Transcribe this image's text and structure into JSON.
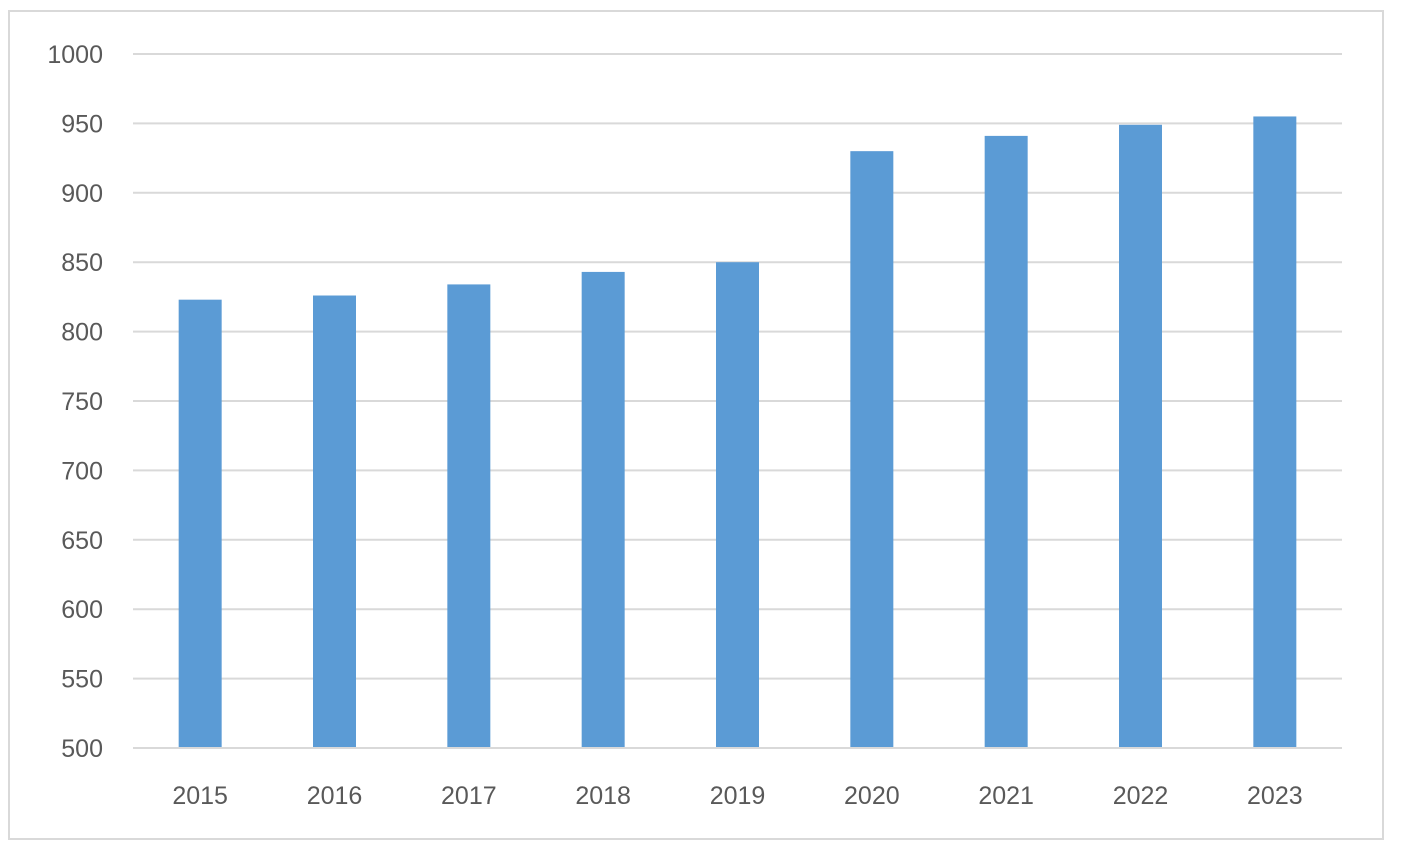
{
  "chart_data": {
    "type": "bar",
    "title": "",
    "xlabel": "",
    "ylabel": "",
    "categories": [
      "2015",
      "2016",
      "2017",
      "2018",
      "2019",
      "2020",
      "2021",
      "2022",
      "2023"
    ],
    "series": [
      {
        "values": [
          823,
          826,
          834,
          843,
          850,
          930,
          941,
          949,
          955
        ],
        "color": "#5b9bd5"
      }
    ],
    "ylim": [
      500,
      1000
    ],
    "yticks": [
      500,
      550,
      600,
      650,
      700,
      750,
      800,
      850,
      900,
      950,
      1000
    ],
    "grid": true,
    "legend": "none"
  }
}
